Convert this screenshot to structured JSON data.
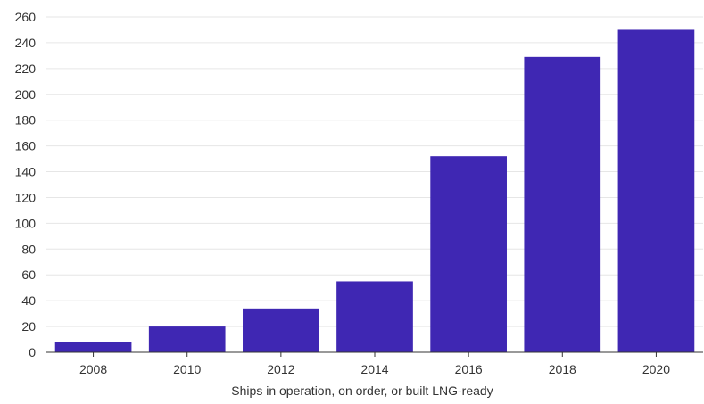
{
  "chart_data": {
    "type": "bar",
    "categories": [
      "2008",
      "2010",
      "2012",
      "2014",
      "2016",
      "2018",
      "2020"
    ],
    "values": [
      8,
      20,
      34,
      55,
      152,
      229,
      250
    ],
    "title": "",
    "xlabel": "Ships in operation, on order, or built LNG-ready",
    "ylabel": "",
    "ylim": [
      0,
      260
    ],
    "yticks": [
      "0",
      "20",
      "40",
      "60",
      "80",
      "100",
      "120",
      "140",
      "160",
      "180",
      "200",
      "220",
      "240",
      "260"
    ],
    "grid": true,
    "bar_color": "#3f27b3"
  }
}
